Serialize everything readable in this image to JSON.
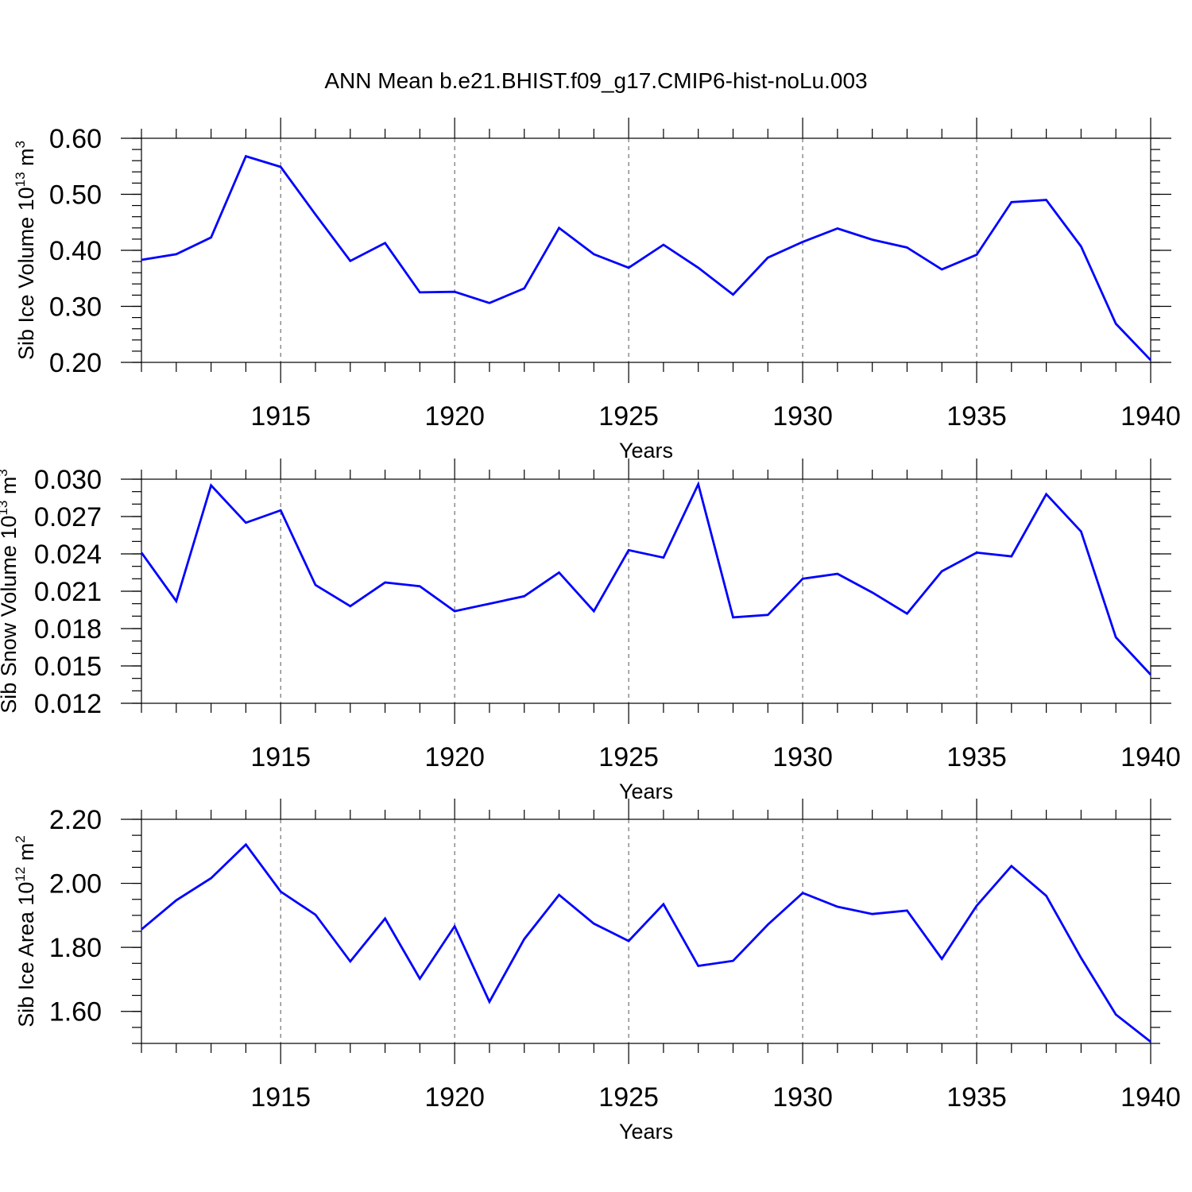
{
  "figure": {
    "title": "ANN Mean b.e21.BHIST.f09_g17.CMIP6-hist-noLu.003",
    "line_color": "#0000ff"
  },
  "chart_data": [
    {
      "type": "line",
      "ylabel": "Sib Ice Volume 10",
      "ylabel_exp": "13",
      "ylabel_unit": " m",
      "ylabel_unit_exp": "3",
      "xlabel": "Years",
      "xlim": [
        1911,
        1940
      ],
      "ylim": [
        0.2,
        0.6
      ],
      "ytick_labels": [
        "0.20",
        "0.30",
        "0.40",
        "0.50",
        "0.60"
      ],
      "ytick_values": [
        0.2,
        0.3,
        0.4,
        0.5,
        0.6
      ],
      "y_minor_step": 0.02,
      "xtick_labels": [
        "1915",
        "1920",
        "1925",
        "1930",
        "1935",
        "1940"
      ],
      "xtick_values": [
        1915,
        1920,
        1925,
        1930,
        1935,
        1940
      ],
      "grid_x": true,
      "x": [
        1911,
        1912,
        1913,
        1914,
        1915,
        1916,
        1917,
        1918,
        1919,
        1920,
        1921,
        1922,
        1923,
        1924,
        1925,
        1926,
        1927,
        1928,
        1929,
        1930,
        1931,
        1932,
        1933,
        1934,
        1935,
        1936,
        1937,
        1938,
        1939,
        1940
      ],
      "values": [
        0.383,
        0.393,
        0.423,
        0.568,
        0.549,
        0.464,
        0.381,
        0.413,
        0.325,
        0.326,
        0.306,
        0.332,
        0.44,
        0.393,
        0.369,
        0.41,
        0.369,
        0.321,
        0.387,
        0.415,
        0.439,
        0.419,
        0.405,
        0.366,
        0.392,
        0.486,
        0.49,
        0.407,
        0.269,
        0.204
      ]
    },
    {
      "type": "line",
      "ylabel": "Sib Snow Volume 10",
      "ylabel_exp": "13",
      "ylabel_unit": " m",
      "ylabel_unit_exp": "3",
      "xlabel": "Years",
      "xlim": [
        1911,
        1940
      ],
      "ylim": [
        0.012,
        0.03
      ],
      "ytick_labels": [
        "0.012",
        "0.015",
        "0.018",
        "0.021",
        "0.024",
        "0.027",
        "0.030"
      ],
      "ytick_values": [
        0.012,
        0.015,
        0.018,
        0.021,
        0.024,
        0.027,
        0.03
      ],
      "y_minor_step": 0.001,
      "xtick_labels": [
        "1915",
        "1920",
        "1925",
        "1930",
        "1935",
        "1940"
      ],
      "xtick_values": [
        1915,
        1920,
        1925,
        1930,
        1935,
        1940
      ],
      "grid_x": true,
      "x": [
        1911,
        1912,
        1913,
        1914,
        1915,
        1916,
        1917,
        1918,
        1919,
        1920,
        1921,
        1922,
        1923,
        1924,
        1925,
        1926,
        1927,
        1928,
        1929,
        1930,
        1931,
        1932,
        1933,
        1934,
        1935,
        1936,
        1937,
        1938,
        1939,
        1940
      ],
      "values": [
        0.0241,
        0.0202,
        0.0295,
        0.0265,
        0.0275,
        0.0215,
        0.0198,
        0.0217,
        0.0214,
        0.0194,
        0.02,
        0.0206,
        0.0225,
        0.0194,
        0.0243,
        0.0237,
        0.0296,
        0.0189,
        0.0191,
        0.022,
        0.0224,
        0.0209,
        0.0192,
        0.0226,
        0.0241,
        0.0238,
        0.0288,
        0.0258,
        0.0173,
        0.0143
      ]
    },
    {
      "type": "line",
      "ylabel": "Sib Ice Area 10",
      "ylabel_exp": "12",
      "ylabel_unit": " m",
      "ylabel_unit_exp": "2",
      "xlabel": "Years",
      "xlim": [
        1911,
        1940
      ],
      "ylim": [
        1.5,
        2.2
      ],
      "ytick_labels": [
        "1.60",
        "1.80",
        "2.00",
        "2.20"
      ],
      "ytick_values": [
        1.6,
        1.8,
        2.0,
        2.2
      ],
      "y_minor_step": 0.05,
      "xtick_labels": [
        "1915",
        "1920",
        "1925",
        "1930",
        "1935",
        "1940"
      ],
      "xtick_values": [
        1915,
        1920,
        1925,
        1930,
        1935,
        1940
      ],
      "grid_x": true,
      "x": [
        1911,
        1912,
        1913,
        1914,
        1915,
        1916,
        1917,
        1918,
        1919,
        1920,
        1921,
        1922,
        1923,
        1924,
        1925,
        1926,
        1927,
        1928,
        1929,
        1930,
        1931,
        1932,
        1933,
        1934,
        1935,
        1936,
        1937,
        1938,
        1939,
        1940
      ],
      "values": [
        1.856,
        1.947,
        2.016,
        2.121,
        1.974,
        1.902,
        1.756,
        1.89,
        1.702,
        1.866,
        1.63,
        1.826,
        1.964,
        1.874,
        1.82,
        1.935,
        1.742,
        1.758,
        1.871,
        1.97,
        1.927,
        1.904,
        1.915,
        1.764,
        1.93,
        2.054,
        1.961,
        1.767,
        1.59,
        1.505
      ]
    }
  ]
}
